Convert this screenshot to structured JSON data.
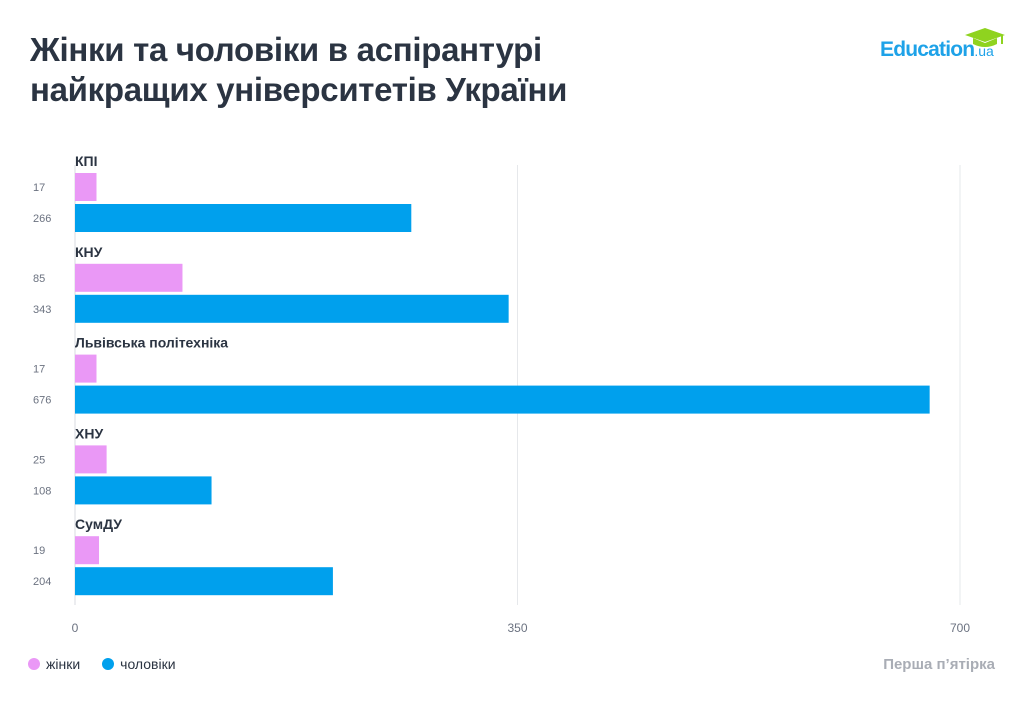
{
  "title_line1": "Жінки та чоловіки в аспірантурі",
  "title_line2": "найкращих університетів України",
  "logo": {
    "text": "Education",
    "suffix": ".ua",
    "brand_color": "#1ea2e8",
    "cap_color": "#8fd31f"
  },
  "source": "Перша п’ятірка",
  "chart_data": {
    "type": "bar",
    "orientation": "horizontal",
    "categories": [
      "КПІ",
      "КНУ",
      "Львівська політехніка",
      "ХНУ",
      "СумДУ"
    ],
    "series": [
      {
        "name": "жінки",
        "color": "#ea98f6",
        "values": [
          17,
          85,
          17,
          25,
          19
        ]
      },
      {
        "name": "чоловіки",
        "color": "#00a0ed",
        "values": [
          266,
          343,
          676,
          108,
          204
        ]
      }
    ],
    "xlim": [
      0,
      700
    ],
    "xticks": [
      "0",
      "350",
      "700"
    ],
    "grid": true,
    "legend": "bottom-left"
  }
}
